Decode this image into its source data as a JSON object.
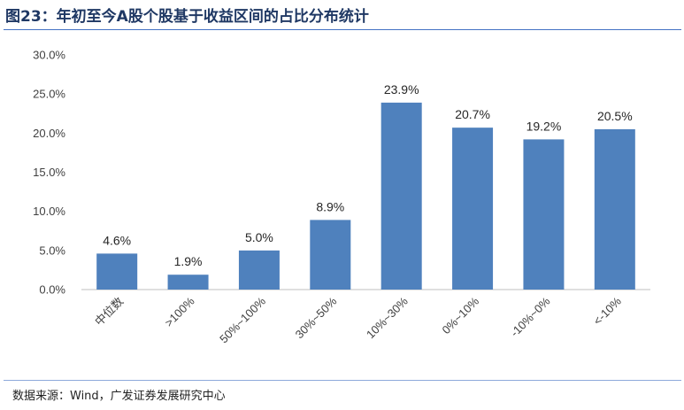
{
  "title": "图23：年初至今A股个股基于收益区间的占比分布统计",
  "source": "数据来源：Wind，广发证券发展研究中心",
  "chart_data": {
    "type": "bar",
    "categories": [
      "中位数",
      ">100%",
      "50%~100%",
      "30%~50%",
      "10%~30%",
      "0%~10%",
      "-10%~0%",
      "<-10%"
    ],
    "values": [
      4.6,
      1.9,
      5.0,
      8.9,
      23.9,
      20.7,
      19.2,
      20.5
    ],
    "data_labels": [
      "4.6%",
      "1.9%",
      "5.0%",
      "8.9%",
      "23.9%",
      "20.7%",
      "19.2%",
      "20.5%"
    ],
    "yticks": [
      "0.0%",
      "5.0%",
      "10.0%",
      "15.0%",
      "20.0%",
      "25.0%",
      "30.0%"
    ],
    "ylim": [
      0,
      30
    ],
    "bar_color": "#4f81bd",
    "grid": false
  }
}
